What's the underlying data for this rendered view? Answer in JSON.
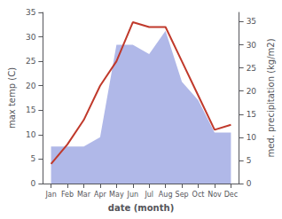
{
  "chart_data": {
    "type": "line",
    "categories": [
      "Jan",
      "Feb",
      "Mar",
      "Apr",
      "May",
      "Jun",
      "Jul",
      "Aug",
      "Sep",
      "Oct",
      "Nov",
      "Dec"
    ],
    "xlabel": "date (month)",
    "ylabel": "max temp (C)",
    "y2label": "med. precipitation (kg/m2)",
    "series": [
      {
        "type": "area",
        "color": "#b0b8e8",
        "axis": "y2",
        "values": [
          8,
          8,
          8,
          10,
          30,
          30,
          28,
          33,
          22,
          18,
          11,
          11
        ]
      },
      {
        "type": "line",
        "color": "#c0392b",
        "values": [
          4,
          8,
          13,
          20,
          25,
          33,
          32,
          32,
          25,
          18,
          11,
          12
        ]
      }
    ],
    "ylim": [
      0,
      35
    ],
    "yticks": [
      0,
      5,
      10,
      15,
      20,
      25,
      30,
      35
    ],
    "y2lim": [
      0,
      37
    ],
    "y2ticks": [
      0,
      5,
      10,
      15,
      20,
      25,
      30,
      35
    ],
    "grid": false
  }
}
